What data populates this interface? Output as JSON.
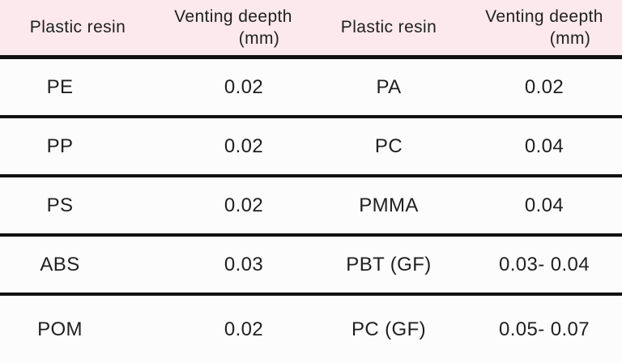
{
  "table": {
    "header": {
      "resin_label_left": "Plastic resin",
      "depth_line1_left": "Venting deepth",
      "depth_line2_left": "(mm)",
      "resin_label_right": "Plastic resin",
      "depth_line1_right": "Venting deepth",
      "depth_line2_right": "(mm)"
    },
    "rows": [
      {
        "resin_left": "PE",
        "depth_left": "0.02",
        "resin_right": "PA",
        "depth_right": "0.02"
      },
      {
        "resin_left": "PP",
        "depth_left": "0.02",
        "resin_right": "PC",
        "depth_right": "0.04"
      },
      {
        "resin_left": "PS",
        "depth_left": "0.02",
        "resin_right": "PMMA",
        "depth_right": "0.04"
      },
      {
        "resin_left": "ABS",
        "depth_left": "0.03",
        "resin_right": "PBT (GF)",
        "depth_right": "0.03- 0.04"
      },
      {
        "resin_left": "POM",
        "depth_left": "0.02",
        "resin_right": "PC (GF)",
        "depth_right": "0.05- 0.07"
      }
    ]
  },
  "colors": {
    "header_bg": "#fbe9ed",
    "row_bg": "#fcfcfc",
    "rule": "#121212",
    "text": "#1f1f1f"
  },
  "chart_data": {
    "type": "table",
    "columns": [
      "Plastic resin",
      "Venting deepth (mm)",
      "Plastic resin",
      "Venting deepth (mm)"
    ],
    "rows": [
      [
        "PE",
        "0.02",
        "PA",
        "0.02"
      ],
      [
        "PP",
        "0.02",
        "PC",
        "0.04"
      ],
      [
        "PS",
        "0.02",
        "PMMA",
        "0.04"
      ],
      [
        "ABS",
        "0.03",
        "PBT (GF)",
        "0.03- 0.04"
      ],
      [
        "POM",
        "0.02",
        "PC (GF)",
        "0.05- 0.07"
      ]
    ],
    "title": "",
    "notes": "Two side-by-side resin/venting-depth column pairs; header typo 'deepth' preserved from source; values in mm"
  }
}
